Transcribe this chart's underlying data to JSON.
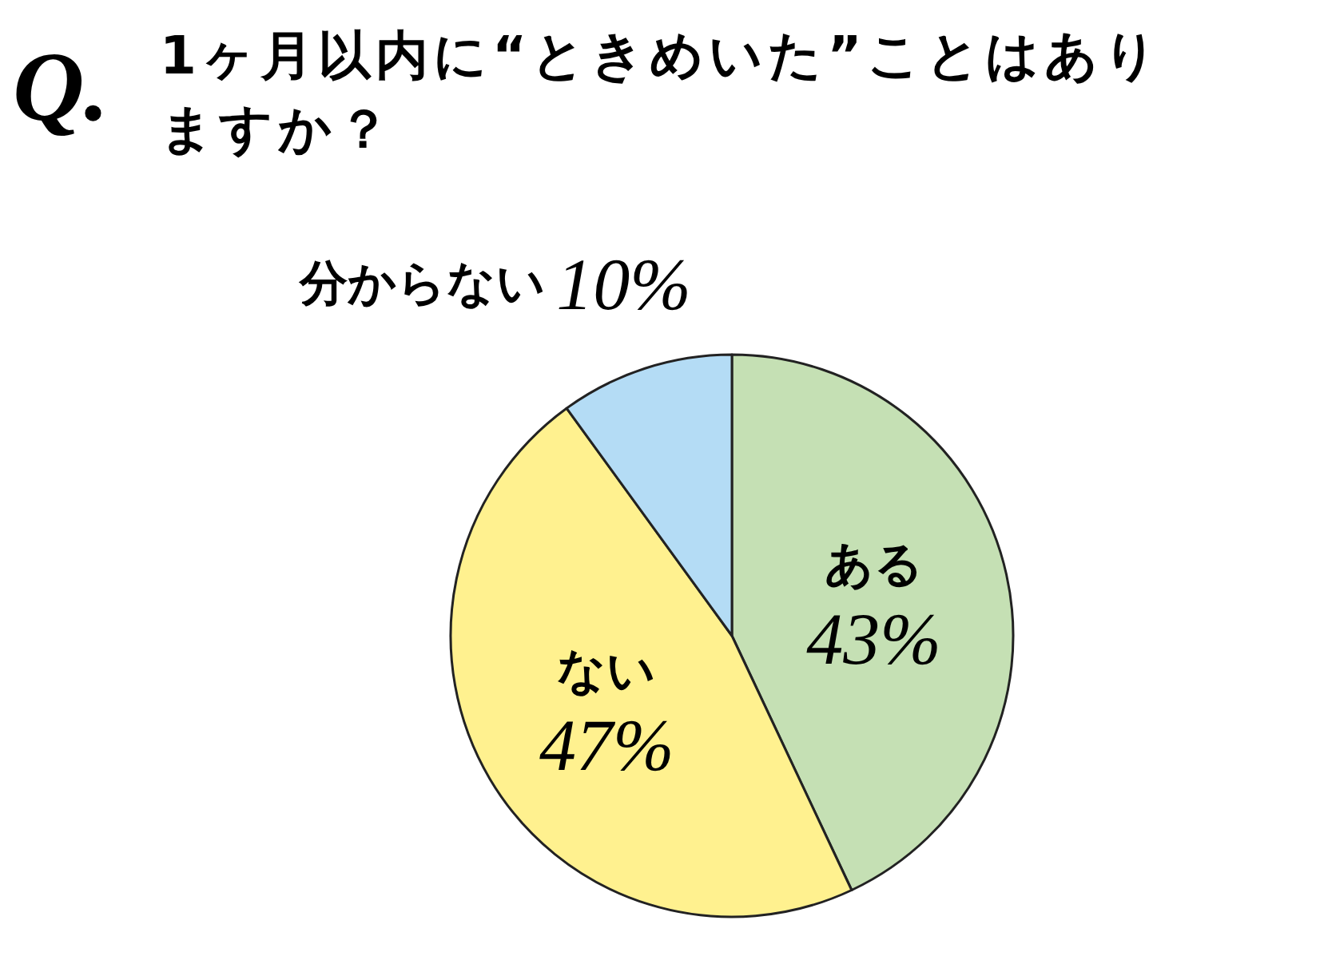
{
  "chart_data": {
    "type": "pie",
    "title": "1ヶ月以内に“ときめいた”ことはありますか？",
    "annotations": [
      "Q."
    ],
    "categories": [
      "ある",
      "ない",
      "分からない"
    ],
    "values": [
      43,
      47,
      10
    ],
    "colors": [
      "#c5e0b4",
      "#fff18f",
      "#b4dcf5"
    ],
    "value_labels": [
      "43%",
      "47%",
      "10%"
    ]
  }
}
